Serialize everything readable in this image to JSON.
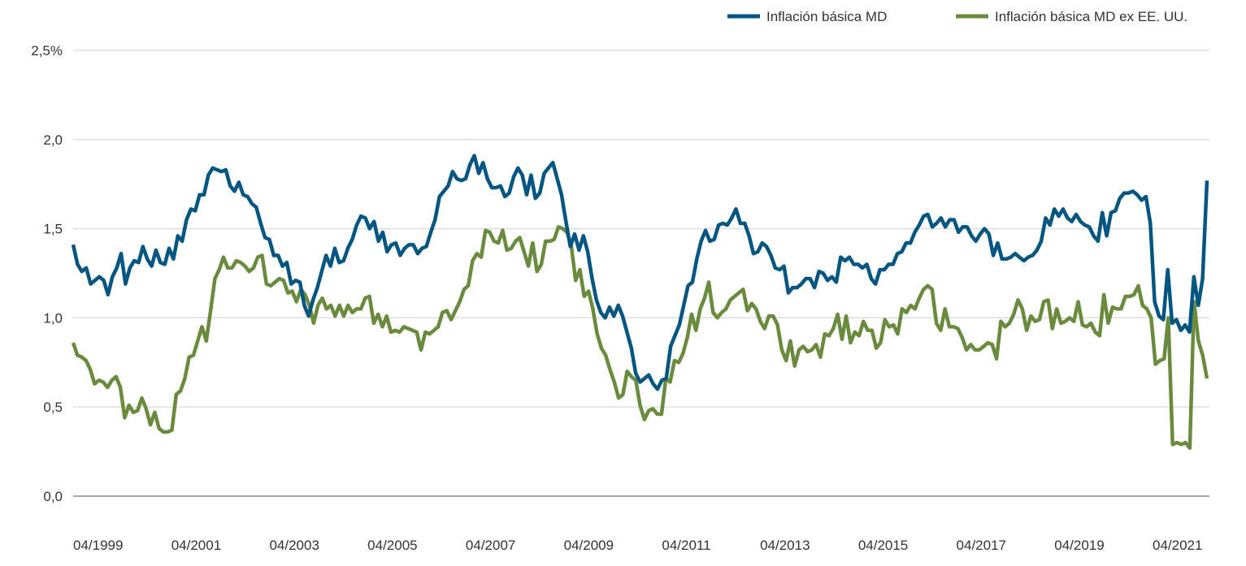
{
  "chart_data": {
    "type": "line",
    "title": "",
    "xlabel": "",
    "ylabel": "",
    "ylim": [
      0,
      2.5
    ],
    "y_ticks": [
      "0,0",
      "0,5",
      "1,0",
      "1,5",
      "2,0",
      "2,5%"
    ],
    "y_tick_values": [
      0,
      0.5,
      1.0,
      1.5,
      2.0,
      2.5
    ],
    "x_ticks": [
      "04/1999",
      "04/2001",
      "04/2003",
      "04/2005",
      "04/2007",
      "04/2009",
      "04/2011",
      "04/2013",
      "04/2015",
      "04/2017",
      "04/2019",
      "04/2021"
    ],
    "grid": true,
    "legend_position": "top-right",
    "series": [
      {
        "name": "Inflación básica MD",
        "color": "#005581",
        "values": [
          1.41,
          1.3,
          1.26,
          1.28,
          1.19,
          1.21,
          1.23,
          1.21,
          1.13,
          1.23,
          1.28,
          1.36,
          1.19,
          1.28,
          1.32,
          1.31,
          1.4,
          1.33,
          1.29,
          1.38,
          1.31,
          1.3,
          1.39,
          1.33,
          1.46,
          1.43,
          1.55,
          1.61,
          1.6,
          1.69,
          1.69,
          1.8,
          1.84,
          1.83,
          1.82,
          1.83,
          1.74,
          1.71,
          1.76,
          1.69,
          1.68,
          1.64,
          1.62,
          1.53,
          1.45,
          1.44,
          1.35,
          1.35,
          1.29,
          1.31,
          1.19,
          1.21,
          1.2,
          1.07,
          1.01,
          1.1,
          1.17,
          1.26,
          1.35,
          1.29,
          1.39,
          1.31,
          1.32,
          1.39,
          1.44,
          1.52,
          1.57,
          1.56,
          1.5,
          1.54,
          1.43,
          1.48,
          1.37,
          1.41,
          1.42,
          1.35,
          1.39,
          1.41,
          1.41,
          1.36,
          1.39,
          1.4,
          1.48,
          1.55,
          1.68,
          1.71,
          1.74,
          1.82,
          1.78,
          1.77,
          1.78,
          1.86,
          1.91,
          1.81,
          1.87,
          1.78,
          1.73,
          1.73,
          1.74,
          1.68,
          1.7,
          1.79,
          1.84,
          1.8,
          1.69,
          1.8,
          1.67,
          1.7,
          1.81,
          1.84,
          1.87,
          1.78,
          1.69,
          1.54,
          1.4,
          1.47,
          1.38,
          1.46,
          1.37,
          1.22,
          1.1,
          1.03,
          1.0,
          1.06,
          1.01,
          1.07,
          1.01,
          0.92,
          0.83,
          0.69,
          0.64,
          0.66,
          0.68,
          0.63,
          0.6,
          0.65,
          0.66,
          0.84,
          0.9,
          0.96,
          1.07,
          1.18,
          1.2,
          1.33,
          1.43,
          1.49,
          1.43,
          1.44,
          1.52,
          1.53,
          1.52,
          1.56,
          1.61,
          1.53,
          1.53,
          1.46,
          1.36,
          1.37,
          1.42,
          1.4,
          1.35,
          1.28,
          1.27,
          1.29,
          1.14,
          1.17,
          1.17,
          1.19,
          1.22,
          1.22,
          1.17,
          1.26,
          1.25,
          1.21,
          1.23,
          1.2,
          1.34,
          1.32,
          1.34,
          1.3,
          1.3,
          1.28,
          1.3,
          1.22,
          1.19,
          1.27,
          1.27,
          1.3,
          1.3,
          1.36,
          1.37,
          1.42,
          1.42,
          1.48,
          1.52,
          1.57,
          1.58,
          1.51,
          1.53,
          1.56,
          1.51,
          1.55,
          1.55,
          1.48,
          1.51,
          1.51,
          1.46,
          1.43,
          1.47,
          1.5,
          1.47,
          1.35,
          1.42,
          1.33,
          1.33,
          1.34,
          1.36,
          1.34,
          1.32,
          1.34,
          1.35,
          1.38,
          1.43,
          1.56,
          1.52,
          1.61,
          1.57,
          1.61,
          1.56,
          1.54,
          1.58,
          1.54,
          1.52,
          1.51,
          1.46,
          1.43,
          1.59,
          1.46,
          1.59,
          1.6,
          1.67,
          1.7,
          1.7,
          1.71,
          1.69,
          1.66,
          1.68,
          1.53,
          1.09,
          1.01,
          0.99,
          1.27,
          0.97,
          0.99,
          0.93,
          0.96,
          0.92,
          1.23,
          1.07,
          1.22,
          1.77
        ]
      },
      {
        "name": "Inflación básica MD ex EE. UU.",
        "color": "#6a8a3e",
        "values": [
          0.86,
          0.79,
          0.78,
          0.76,
          0.71,
          0.63,
          0.65,
          0.64,
          0.61,
          0.65,
          0.67,
          0.61,
          0.44,
          0.51,
          0.47,
          0.48,
          0.55,
          0.49,
          0.4,
          0.47,
          0.38,
          0.36,
          0.36,
          0.37,
          0.57,
          0.59,
          0.66,
          0.78,
          0.79,
          0.87,
          0.95,
          0.87,
          1.04,
          1.22,
          1.27,
          1.34,
          1.28,
          1.28,
          1.32,
          1.31,
          1.29,
          1.26,
          1.28,
          1.34,
          1.35,
          1.19,
          1.18,
          1.2,
          1.22,
          1.21,
          1.14,
          1.15,
          1.09,
          1.16,
          1.13,
          1.07,
          0.97,
          1.07,
          1.11,
          1.05,
          1.07,
          1.01,
          1.07,
          1.01,
          1.07,
          1.03,
          1.05,
          1.05,
          1.11,
          1.12,
          0.97,
          1.02,
          0.95,
          1.01,
          0.92,
          0.93,
          0.92,
          0.95,
          0.94,
          0.93,
          0.92,
          0.82,
          0.92,
          0.91,
          0.93,
          0.95,
          1.03,
          1.04,
          0.99,
          1.04,
          1.09,
          1.16,
          1.18,
          1.32,
          1.36,
          1.34,
          1.49,
          1.48,
          1.43,
          1.42,
          1.49,
          1.38,
          1.39,
          1.43,
          1.45,
          1.37,
          1.29,
          1.42,
          1.26,
          1.3,
          1.43,
          1.43,
          1.44,
          1.51,
          1.5,
          1.48,
          1.4,
          1.21,
          1.27,
          1.12,
          1.15,
          1.05,
          0.91,
          0.83,
          0.79,
          0.71,
          0.64,
          0.55,
          0.57,
          0.7,
          0.67,
          0.65,
          0.51,
          0.43,
          0.48,
          0.49,
          0.46,
          0.46,
          0.66,
          0.64,
          0.76,
          0.75,
          0.8,
          0.89,
          1.02,
          0.93,
          1.05,
          1.11,
          1.2,
          1.03,
          1.0,
          1.03,
          1.05,
          1.1,
          1.12,
          1.14,
          1.16,
          1.04,
          1.08,
          1.05,
          0.98,
          0.94,
          1.01,
          1.01,
          0.96,
          0.82,
          0.76,
          0.87,
          0.73,
          0.82,
          0.84,
          0.81,
          0.82,
          0.85,
          0.78,
          0.91,
          0.9,
          0.94,
          1.02,
          0.88,
          1.01,
          0.86,
          0.92,
          0.9,
          0.98,
          0.93,
          0.93,
          0.83,
          0.86,
          0.99,
          0.95,
          0.96,
          0.91,
          1.05,
          1.03,
          1.07,
          1.05,
          1.11,
          1.16,
          1.18,
          1.16,
          0.97,
          0.93,
          1.05,
          0.95,
          0.95,
          0.94,
          0.89,
          0.82,
          0.85,
          0.82,
          0.82,
          0.84,
          0.86,
          0.85,
          0.77,
          0.98,
          0.95,
          0.97,
          1.02,
          1.1,
          1.05,
          0.93,
          1.01,
          0.98,
          0.99,
          1.09,
          1.1,
          0.94,
          1.05,
          0.97,
          0.98,
          1.0,
          0.98,
          1.09,
          0.96,
          0.95,
          0.97,
          0.92,
          0.9,
          1.13,
          0.97,
          1.06,
          1.05,
          1.05,
          1.12,
          1.12,
          1.13,
          1.18,
          1.07,
          1.05,
          1.0,
          0.74,
          0.76,
          0.77,
          1.0,
          0.29,
          0.3,
          0.29,
          0.3,
          0.27,
          1.09,
          0.87,
          0.79,
          0.66
        ]
      }
    ]
  }
}
